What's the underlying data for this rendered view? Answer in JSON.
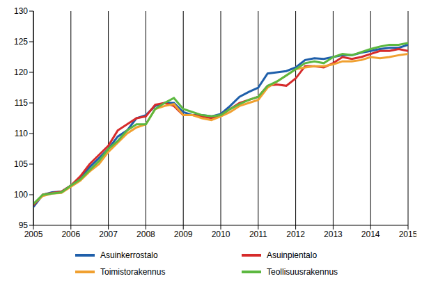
{
  "chart_data": {
    "type": "line",
    "x": [
      2005,
      2005.25,
      2005.5,
      2005.75,
      2006,
      2006.25,
      2006.5,
      2006.75,
      2007,
      2007.25,
      2007.5,
      2007.75,
      2008,
      2008.25,
      2008.5,
      2008.75,
      2009,
      2009.25,
      2009.5,
      2009.75,
      2010,
      2010.25,
      2010.5,
      2010.75,
      2011,
      2011.25,
      2011.5,
      2011.75,
      2012,
      2012.25,
      2012.5,
      2012.75,
      2013,
      2013.25,
      2013.5,
      2013.75,
      2014,
      2014.25,
      2014.5,
      2014.75,
      2015
    ],
    "series": [
      {
        "name": "Asuinkerrostalo",
        "color": "#1f5faa",
        "values": [
          98,
          100,
          100.4,
          100.5,
          101.5,
          102.8,
          104.5,
          106,
          107.5,
          109.5,
          110.5,
          112.5,
          113,
          114.5,
          115,
          115,
          113.5,
          113,
          113,
          112.8,
          113.2,
          114.5,
          116,
          116.8,
          117.5,
          119.8,
          120,
          120.2,
          120.8,
          122,
          122.3,
          122.2,
          122.5,
          122.8,
          122.8,
          123.2,
          123.5,
          123.8,
          124,
          124,
          124.5
        ]
      },
      {
        "name": "Asuinpientalo",
        "color": "#d62b2b",
        "values": [
          98.3,
          100,
          100.3,
          100.5,
          101.5,
          103,
          105,
          106.5,
          108,
          110.5,
          111.5,
          112.5,
          112.8,
          114.7,
          115,
          114.5,
          113,
          113,
          112.8,
          112.5,
          113,
          114,
          115,
          115.5,
          116,
          117.8,
          118,
          117.8,
          119,
          121,
          121,
          120.8,
          121.5,
          122.5,
          122.2,
          122.5,
          123,
          123.5,
          123.5,
          123.8,
          123.5
        ]
      },
      {
        "name": "Toimistorakennus",
        "color": "#f0a030",
        "values": [
          98.5,
          99.8,
          100.2,
          100.3,
          101.3,
          102.3,
          103.8,
          105,
          107,
          108.5,
          110,
          111,
          111.5,
          114,
          114.5,
          114.8,
          113,
          113,
          112.5,
          112.2,
          112.8,
          113.5,
          114.5,
          115,
          115.5,
          117.5,
          118.5,
          119.5,
          120.5,
          120.8,
          121,
          121,
          121.3,
          121.8,
          121.8,
          122,
          122.5,
          122.3,
          122.5,
          122.8,
          123
        ]
      },
      {
        "name": "Teollisuusrakennus",
        "color": "#5cb840",
        "values": [
          98.5,
          100,
          100.2,
          100.4,
          101.5,
          102.5,
          104,
          105.5,
          107.5,
          108.8,
          110.5,
          111.5,
          111.5,
          114,
          115,
          115.8,
          114,
          113.5,
          113,
          112.8,
          113,
          114,
          114.8,
          115.5,
          116,
          117.8,
          118.5,
          119.5,
          120.5,
          121.5,
          121.8,
          121.5,
          122.5,
          123,
          122.8,
          123.3,
          123.8,
          124.2,
          124.5,
          124.5,
          124.8
        ]
      }
    ],
    "xlim": [
      2005,
      2015
    ],
    "xticks": [
      2005,
      2006,
      2007,
      2008,
      2009,
      2010,
      2011,
      2012,
      2013,
      2014,
      2015
    ],
    "ylim": [
      95,
      130
    ],
    "yticks": [
      95,
      100,
      105,
      110,
      115,
      120,
      125,
      130
    ],
    "grid": "x",
    "legend": "bottom"
  }
}
